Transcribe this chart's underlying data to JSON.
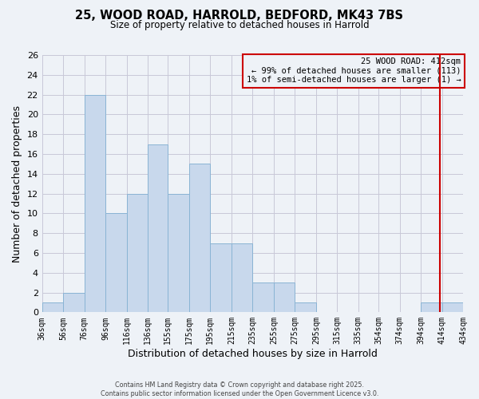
{
  "title_line1": "25, WOOD ROAD, HARROLD, BEDFORD, MK43 7BS",
  "title_line2": "Size of property relative to detached houses in Harrold",
  "xlabel": "Distribution of detached houses by size in Harrold",
  "ylabel": "Number of detached properties",
  "bar_edges": [
    36,
    56,
    76,
    96,
    116,
    136,
    155,
    175,
    195,
    215,
    235,
    255,
    275,
    295,
    315,
    335,
    354,
    374,
    394,
    414,
    434
  ],
  "bar_heights": [
    1,
    2,
    22,
    10,
    12,
    17,
    12,
    15,
    7,
    7,
    3,
    3,
    1,
    0,
    0,
    0,
    0,
    0,
    1,
    1,
    0
  ],
  "bar_color": "#c8d8ec",
  "bar_edgecolor": "#8ab4d4",
  "grid_color": "#c8c8d8",
  "vline_x": 412,
  "vline_color": "#cc0000",
  "annotation_title": "25 WOOD ROAD: 412sqm",
  "annotation_line1": "← 99% of detached houses are smaller (113)",
  "annotation_line2": "1% of semi-detached houses are larger (1) →",
  "annotation_box_edgecolor": "#cc0000",
  "ylim": [
    0,
    26
  ],
  "yticks": [
    0,
    2,
    4,
    6,
    8,
    10,
    12,
    14,
    16,
    18,
    20,
    22,
    24,
    26
  ],
  "xtick_labels": [
    "36sqm",
    "56sqm",
    "76sqm",
    "96sqm",
    "116sqm",
    "136sqm",
    "155sqm",
    "175sqm",
    "195sqm",
    "215sqm",
    "235sqm",
    "255sqm",
    "275sqm",
    "295sqm",
    "315sqm",
    "335sqm",
    "354sqm",
    "374sqm",
    "394sqm",
    "414sqm",
    "434sqm"
  ],
  "footer_line1": "Contains HM Land Registry data © Crown copyright and database right 2025.",
  "footer_line2": "Contains public sector information licensed under the Open Government Licence v3.0.",
  "background_color": "#eef2f7",
  "plot_background_color": "#eef2f7"
}
